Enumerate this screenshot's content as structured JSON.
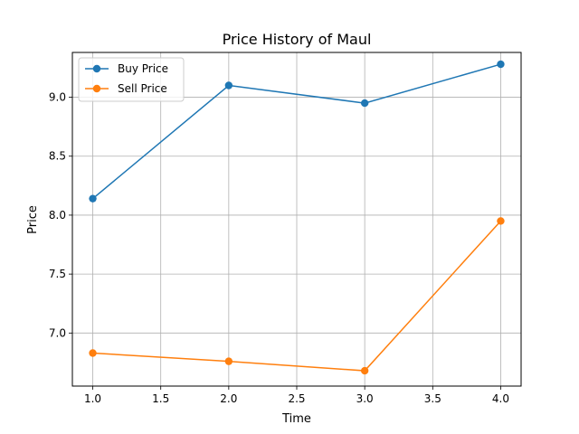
{
  "chart_data": {
    "type": "line",
    "title": "Price History of Maul",
    "xlabel": "Time",
    "ylabel": "Price",
    "x": [
      1.0,
      2.0,
      3.0,
      4.0
    ],
    "series": [
      {
        "name": "Buy Price",
        "values": [
          8.14,
          9.1,
          8.95,
          9.28
        ],
        "color": "#1f77b4"
      },
      {
        "name": "Sell Price",
        "values": [
          6.83,
          6.76,
          6.68,
          7.95
        ],
        "color": "#ff7f0e"
      }
    ],
    "xlim": [
      0.85,
      4.15
    ],
    "ylim": [
      6.55,
      9.38
    ],
    "xticks": [
      "1.0",
      "1.5",
      "2.0",
      "2.5",
      "3.0",
      "3.5",
      "4.0"
    ],
    "yticks": [
      "7.0",
      "7.5",
      "8.0",
      "8.5",
      "9.0"
    ],
    "grid": true,
    "legend_position": "upper-left"
  }
}
